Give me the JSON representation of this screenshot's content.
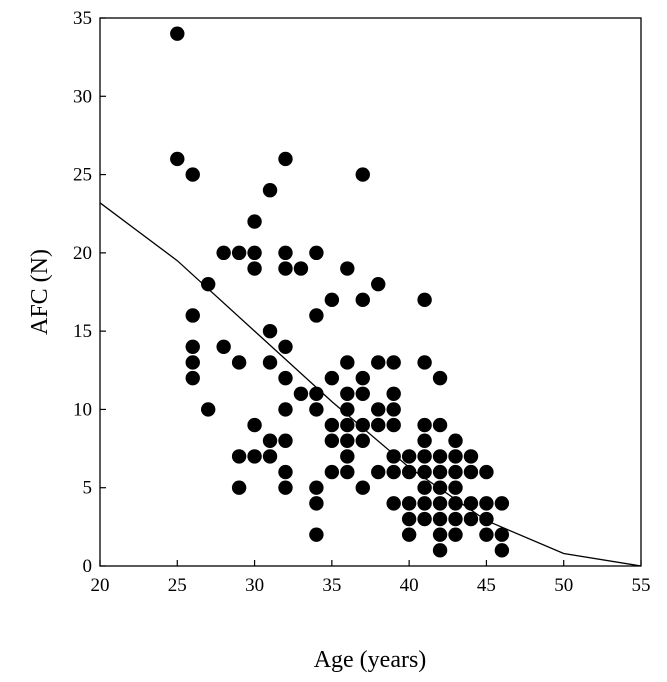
{
  "chart_data": {
    "type": "scatter",
    "xlabel": "Age (years)",
    "ylabel": "AFC (N)",
    "xlim": [
      20,
      55
    ],
    "ylim": [
      0,
      35
    ],
    "xticks": [
      20,
      25,
      30,
      35,
      40,
      45,
      50,
      55
    ],
    "yticks": [
      0,
      5,
      10,
      15,
      20,
      25,
      30,
      35
    ],
    "grid": false,
    "marker_color": "#000000",
    "series": [
      {
        "kind": "scatter",
        "points": [
          [
            25,
            34
          ],
          [
            25,
            26
          ],
          [
            26,
            25
          ],
          [
            26,
            16
          ],
          [
            26,
            14
          ],
          [
            26,
            13
          ],
          [
            26,
            12
          ],
          [
            27,
            18
          ],
          [
            27,
            10
          ],
          [
            28,
            20
          ],
          [
            28,
            14
          ],
          [
            29,
            20
          ],
          [
            29,
            13
          ],
          [
            29,
            7
          ],
          [
            29,
            5
          ],
          [
            30,
            22
          ],
          [
            30,
            20
          ],
          [
            30,
            19
          ],
          [
            30,
            9
          ],
          [
            30,
            7
          ],
          [
            31,
            24
          ],
          [
            31,
            15
          ],
          [
            31,
            13
          ],
          [
            31,
            8
          ],
          [
            31,
            7
          ],
          [
            32,
            26
          ],
          [
            32,
            20
          ],
          [
            32,
            19
          ],
          [
            32,
            14
          ],
          [
            32,
            12
          ],
          [
            32,
            10
          ],
          [
            32,
            8
          ],
          [
            32,
            6
          ],
          [
            32,
            5
          ],
          [
            33,
            19
          ],
          [
            33,
            11
          ],
          [
            34,
            20
          ],
          [
            34,
            16
          ],
          [
            34,
            11
          ],
          [
            34,
            10
          ],
          [
            34,
            5
          ],
          [
            34,
            4
          ],
          [
            34,
            2
          ],
          [
            35,
            17
          ],
          [
            35,
            12
          ],
          [
            35,
            9
          ],
          [
            35,
            8
          ],
          [
            35,
            6
          ],
          [
            36,
            19
          ],
          [
            36,
            13
          ],
          [
            36,
            11
          ],
          [
            36,
            10
          ],
          [
            36,
            9
          ],
          [
            36,
            8
          ],
          [
            36,
            7
          ],
          [
            36,
            6
          ],
          [
            37,
            25
          ],
          [
            37,
            17
          ],
          [
            37,
            12
          ],
          [
            37,
            11
          ],
          [
            37,
            9
          ],
          [
            37,
            8
          ],
          [
            37,
            5
          ],
          [
            38,
            18
          ],
          [
            38,
            13
          ],
          [
            38,
            10
          ],
          [
            38,
            9
          ],
          [
            38,
            6
          ],
          [
            39,
            13
          ],
          [
            39,
            11
          ],
          [
            39,
            10
          ],
          [
            39,
            9
          ],
          [
            39,
            7
          ],
          [
            39,
            6
          ],
          [
            39,
            4
          ],
          [
            40,
            7
          ],
          [
            40,
            6
          ],
          [
            40,
            4
          ],
          [
            40,
            3
          ],
          [
            40,
            2
          ],
          [
            41,
            17
          ],
          [
            41,
            13
          ],
          [
            41,
            9
          ],
          [
            41,
            8
          ],
          [
            41,
            7
          ],
          [
            41,
            6
          ],
          [
            41,
            5
          ],
          [
            41,
            4
          ],
          [
            41,
            3
          ],
          [
            42,
            12
          ],
          [
            42,
            9
          ],
          [
            42,
            7
          ],
          [
            42,
            6
          ],
          [
            42,
            5
          ],
          [
            42,
            4
          ],
          [
            42,
            3
          ],
          [
            42,
            2
          ],
          [
            42,
            1
          ],
          [
            43,
            8
          ],
          [
            43,
            7
          ],
          [
            43,
            6
          ],
          [
            43,
            5
          ],
          [
            43,
            4
          ],
          [
            43,
            3
          ],
          [
            43,
            2
          ],
          [
            44,
            7
          ],
          [
            44,
            6
          ],
          [
            44,
            4
          ],
          [
            44,
            3
          ],
          [
            45,
            6
          ],
          [
            45,
            4
          ],
          [
            45,
            3
          ],
          [
            45,
            2
          ],
          [
            46,
            4
          ],
          [
            46,
            2
          ],
          [
            46,
            1
          ]
        ]
      },
      {
        "kind": "line",
        "points": [
          [
            20,
            23.2
          ],
          [
            25,
            19.5
          ],
          [
            30,
            15.0
          ],
          [
            35,
            10.5
          ],
          [
            40,
            6.3
          ],
          [
            45,
            2.9
          ],
          [
            50,
            0.8
          ],
          [
            55,
            0.0
          ]
        ]
      }
    ]
  }
}
